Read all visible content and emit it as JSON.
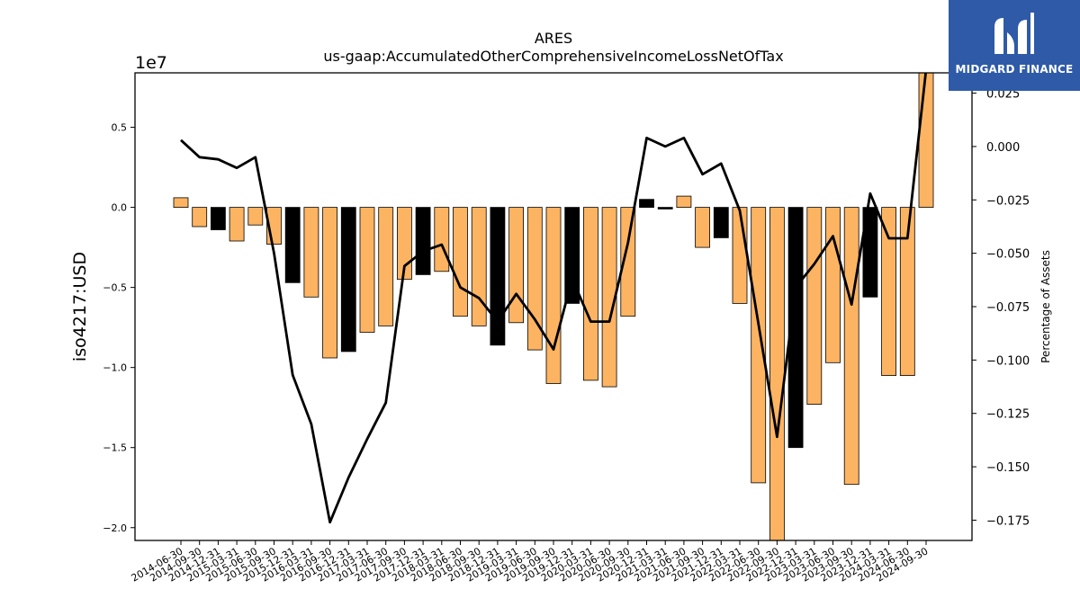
{
  "logo": {
    "text": "MIDGARD FINANCE"
  },
  "chart_data": {
    "type": "bar",
    "title": "ARES",
    "subtitle": "us-gaap:AccumulatedOtherComprehensiveIncomeLossNetOfTax",
    "ylabel": "iso4217:USD",
    "y2label": "Percentage of Assets",
    "y_offset_text": "1e7",
    "ylim": [
      -2.08,
      0.84
    ],
    "y2lim": [
      -0.1845,
      0.0345
    ],
    "yticks": [
      0.5,
      0.0,
      -0.5,
      -1.0,
      -1.5,
      -2.0
    ],
    "ytick_labels": [
      "0.5",
      "0.0",
      "−0.5",
      "−1.0",
      "−1.5",
      "−2.0"
    ],
    "y2ticks": [
      0.025,
      0.0,
      -0.025,
      -0.05,
      -0.075,
      -0.1,
      -0.125,
      -0.15,
      -0.175
    ],
    "y2tick_labels": [
      "0.025",
      "0.000",
      "−0.025",
      "−0.050",
      "−0.075",
      "−0.100",
      "−0.125",
      "−0.150",
      "−0.175"
    ],
    "categories": [
      "2014-06-30",
      "2014-09-30",
      "2014-12-31",
      "2015-03-31",
      "2015-06-30",
      "2015-09-30",
      "2015-12-31",
      "2016-03-31",
      "2016-09-30",
      "2016-12-31",
      "2017-03-31",
      "2017-06-30",
      "2017-09-30",
      "2017-12-31",
      "2018-03-31",
      "2018-06-30",
      "2018-09-30",
      "2018-12-31",
      "2019-03-31",
      "2019-06-30",
      "2019-09-30",
      "2019-12-31",
      "2020-03-31",
      "2020-06-30",
      "2020-09-30",
      "2020-12-31",
      "2021-03-31",
      "2021-06-30",
      "2021-09-30",
      "2021-12-31",
      "2022-03-31",
      "2022-06-30",
      "2022-09-30",
      "2022-12-31",
      "2023-03-31",
      "2023-06-30",
      "2023-09-30",
      "2023-12-31",
      "2024-03-31",
      "2024-06-30",
      "2024-09-30"
    ],
    "series": [
      {
        "kind": "bar",
        "values": [
          0.06,
          -0.12,
          -0.14,
          -0.21,
          -0.11,
          -0.23,
          -0.47,
          -0.56,
          -0.94,
          -0.9,
          -0.78,
          -0.74,
          -0.45,
          -0.42,
          -0.4,
          -0.68,
          -0.74,
          -0.86,
          -0.72,
          -0.89,
          -1.1,
          -0.6,
          -1.08,
          -1.12,
          -0.68,
          0.05,
          -0.01,
          0.07,
          -0.25,
          -0.19,
          -0.6,
          -1.72,
          -2.1,
          -1.5,
          -1.23,
          -0.97,
          -1.73,
          -0.56,
          -1.05,
          -1.05,
          0.85
        ],
        "colors": [
          "#fdb462",
          "#fdb462",
          "#000000",
          "#fdb462",
          "#fdb462",
          "#fdb462",
          "#000000",
          "#fdb462",
          "#fdb462",
          "#000000",
          "#fdb462",
          "#fdb462",
          "#fdb462",
          "#000000",
          "#fdb462",
          "#fdb462",
          "#fdb462",
          "#000000",
          "#fdb462",
          "#fdb462",
          "#fdb462",
          "#000000",
          "#fdb462",
          "#fdb462",
          "#fdb462",
          "#000000",
          "#000000",
          "#fdb462",
          "#fdb462",
          "#000000",
          "#fdb462",
          "#fdb462",
          "#fdb462",
          "#000000",
          "#fdb462",
          "#fdb462",
          "#fdb462",
          "#000000",
          "#fdb462",
          "#fdb462",
          "#fdb462"
        ]
      },
      {
        "kind": "line",
        "axis": "right",
        "color": "#000000",
        "values": [
          0.003,
          -0.005,
          -0.006,
          -0.01,
          -0.005,
          -0.05,
          -0.107,
          -0.13,
          -0.176,
          -0.155,
          -0.137,
          -0.12,
          -0.056,
          -0.049,
          -0.046,
          -0.066,
          -0.071,
          -0.082,
          -0.069,
          -0.081,
          -0.095,
          -0.062,
          -0.082,
          -0.082,
          -0.045,
          0.004,
          0.0,
          0.004,
          -0.013,
          -0.008,
          -0.03,
          -0.083,
          -0.136,
          -0.066,
          -0.055,
          -0.042,
          -0.074,
          -0.022,
          -0.043,
          -0.043,
          0.036
        ]
      }
    ],
    "grid": false,
    "legend": "none"
  }
}
